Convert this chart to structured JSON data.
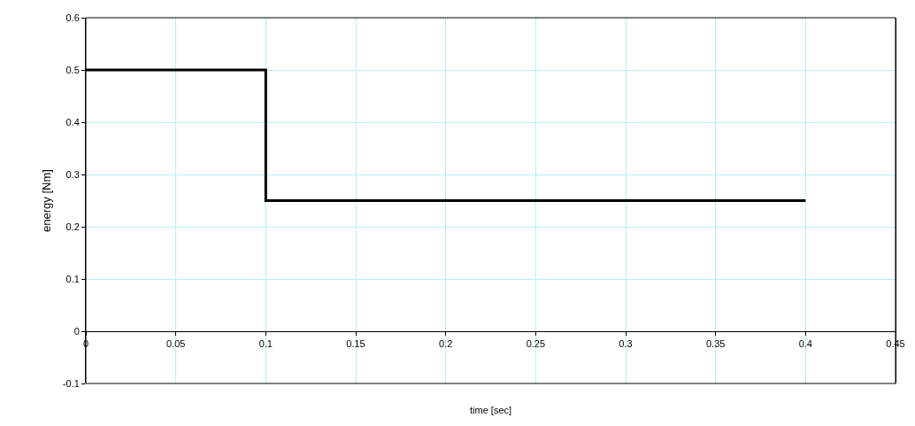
{
  "chart_data": {
    "type": "step",
    "xlabel": "time [sec]",
    "ylabel": "energy [Nm]",
    "x": [
      0,
      0.1,
      0.4
    ],
    "series": [
      {
        "color": "#000000",
        "values": [
          0.5,
          0.25,
          0.25
        ]
      }
    ],
    "xlim": [
      0,
      0.45
    ],
    "xticks": [
      0,
      0.05,
      0.1,
      0.15,
      0.2,
      0.25,
      0.3,
      0.35,
      0.4,
      0.45
    ],
    "ylim": [
      -0.1,
      0.6
    ],
    "yticks": [
      -0.1,
      0,
      0.1,
      0.2,
      0.3,
      0.4,
      0.5,
      0.6
    ],
    "grid": true,
    "legend": false,
    "marker": "none",
    "line_style": "solid"
  }
}
